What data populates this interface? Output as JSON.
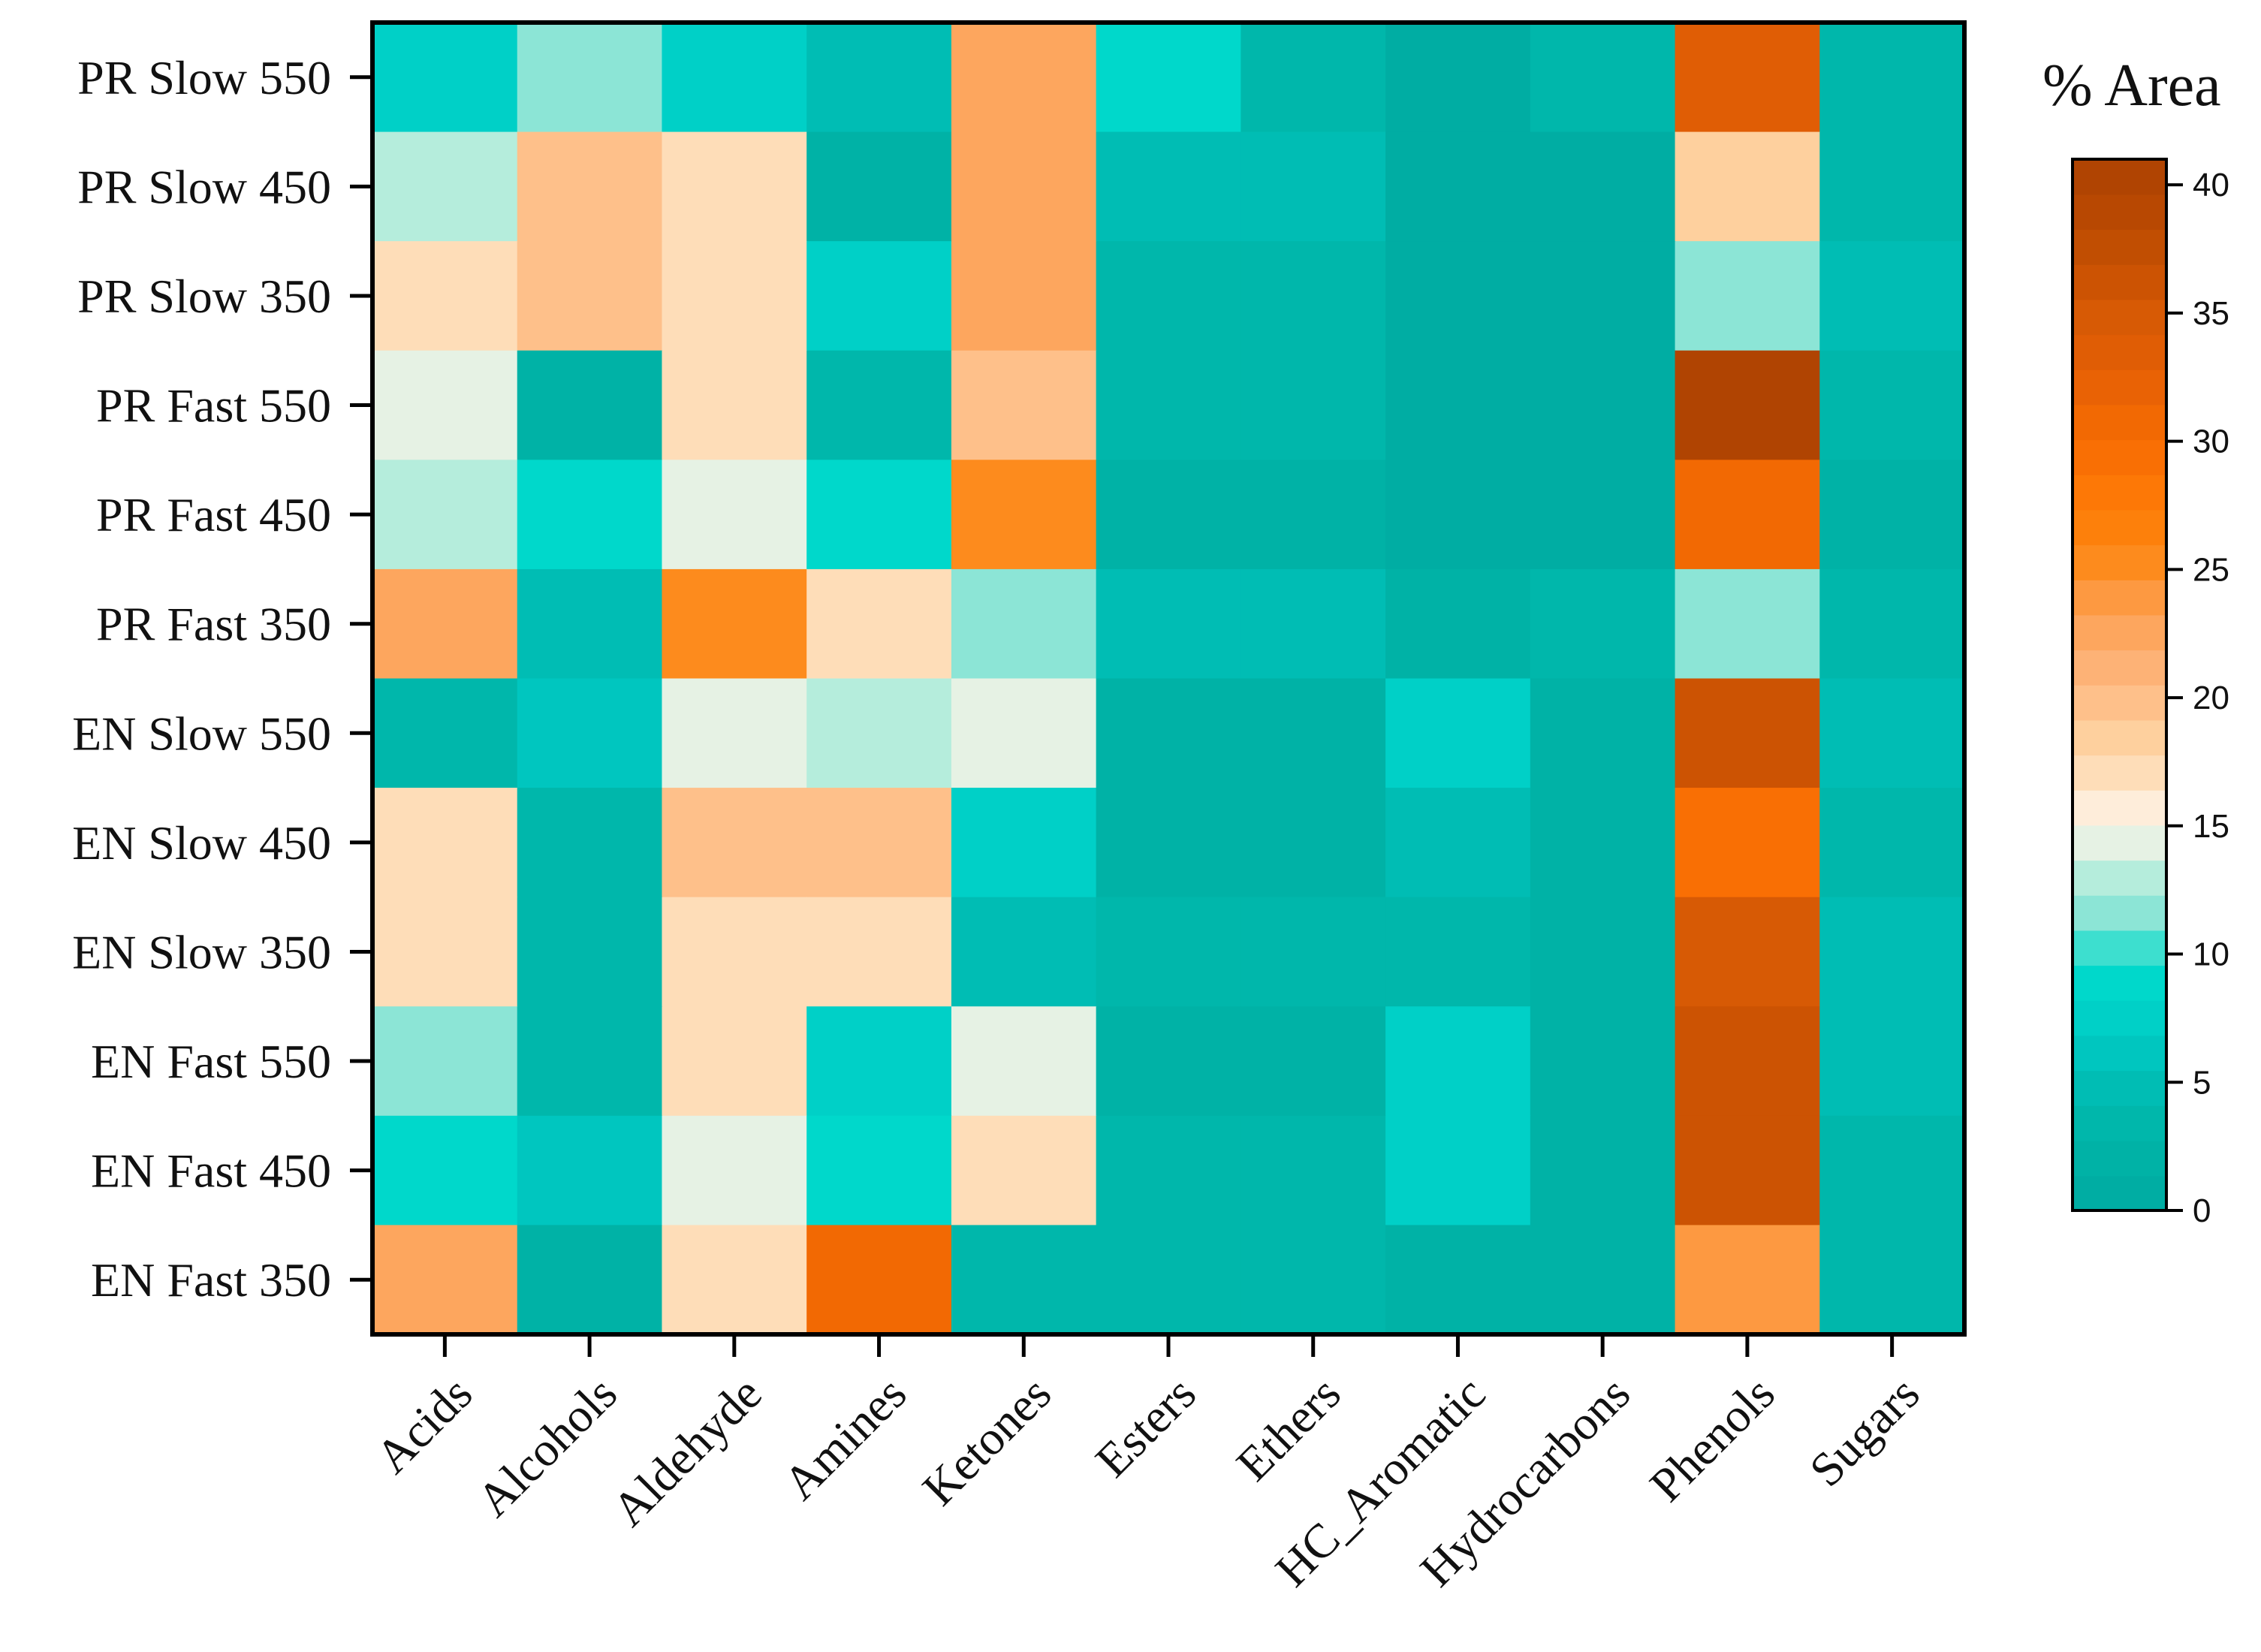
{
  "chart_data": {
    "type": "heatmap",
    "title": "",
    "xlabel": "",
    "ylabel": "",
    "columns": [
      "Acids",
      "Alcohols",
      "Aldehyde",
      "Amines",
      "Ketones",
      "Esters",
      "Ethers",
      "HC_Aromatic",
      "Hydrocarbons",
      "Phenols",
      "Sugars"
    ],
    "rows": [
      "PR Slow 550",
      "PR Slow 450",
      "PR Slow 350",
      "PR Fast 550",
      "PR Fast 450",
      "PR Fast 350",
      "EN Slow 550",
      "EN Slow 450",
      "EN Slow 350",
      "EN Fast 550",
      "EN Fast 450",
      "EN Fast 350"
    ],
    "values": [
      [
        7,
        12,
        7,
        5,
        23,
        9,
        3,
        1,
        4,
        34,
        3
      ],
      [
        13,
        20,
        17,
        2,
        23,
        5,
        5,
        1,
        1,
        19,
        4
      ],
      [
        17,
        20,
        17,
        7,
        22,
        3,
        4,
        1,
        1,
        12,
        5
      ],
      [
        15,
        2,
        17,
        3,
        20,
        4,
        3,
        1,
        1,
        40,
        4
      ],
      [
        13,
        9,
        15,
        9,
        25,
        2,
        2,
        1,
        1,
        31,
        2
      ],
      [
        22,
        5,
        25,
        17,
        12,
        5,
        5,
        2,
        3,
        12,
        3
      ],
      [
        3,
        6,
        15,
        13,
        15,
        2,
        2,
        7,
        2,
        36,
        5
      ],
      [
        17,
        4,
        20,
        20,
        7,
        2,
        2,
        5,
        2,
        29,
        3
      ],
      [
        17,
        4,
        17,
        17,
        5,
        3,
        3,
        3,
        2,
        35,
        5
      ],
      [
        12,
        4,
        17,
        7,
        15,
        2,
        2,
        7,
        2,
        36,
        5
      ],
      [
        9,
        6,
        14,
        9,
        17,
        4,
        3,
        7,
        2,
        36,
        3
      ],
      [
        22,
        2,
        17,
        31,
        4,
        3,
        4,
        2,
        2,
        24,
        4
      ]
    ],
    "colorbar": {
      "label": "% Area",
      "range": [
        0,
        41
      ],
      "ticks": [
        0,
        5,
        10,
        15,
        20,
        25,
        30,
        35,
        40
      ],
      "colors": [
        "#00ADA3",
        "#00B2A6",
        "#00B7AB",
        "#00BDB4",
        "#00C6BF",
        "#00D0C7",
        "#00D8CB",
        "#3DDFCF",
        "#8CE5D6",
        "#B5EDDC",
        "#E6F2E4",
        "#FEEDDA",
        "#FEDDB8",
        "#FED09E",
        "#FEC08A",
        "#FDB276",
        "#FDA65E",
        "#FD9941",
        "#FD8B1D",
        "#FD800B",
        "#FD7806",
        "#F96F04",
        "#F26903",
        "#E96205",
        "#E05D05",
        "#D75A05",
        "#CC5303",
        "#C14E02",
        "#B84802",
        "#B04402"
      ]
    }
  }
}
